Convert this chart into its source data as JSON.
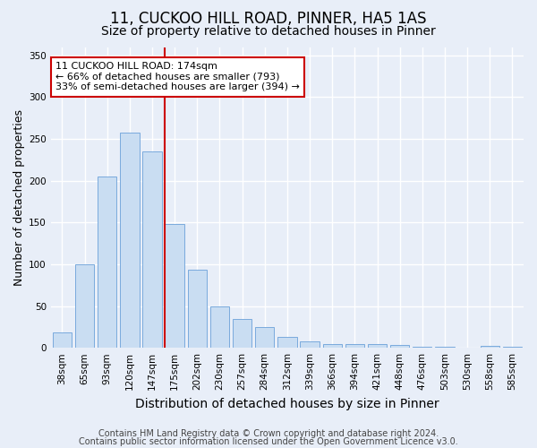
{
  "title1": "11, CUCKOO HILL ROAD, PINNER, HA5 1AS",
  "title2": "Size of property relative to detached houses in Pinner",
  "xlabel": "Distribution of detached houses by size in Pinner",
  "ylabel": "Number of detached properties",
  "categories": [
    "38sqm",
    "65sqm",
    "93sqm",
    "120sqm",
    "147sqm",
    "175sqm",
    "202sqm",
    "230sqm",
    "257sqm",
    "284sqm",
    "312sqm",
    "339sqm",
    "366sqm",
    "394sqm",
    "421sqm",
    "448sqm",
    "476sqm",
    "503sqm",
    "530sqm",
    "558sqm",
    "585sqm"
  ],
  "values": [
    18,
    100,
    205,
    258,
    235,
    148,
    93,
    50,
    35,
    25,
    13,
    8,
    5,
    5,
    5,
    3,
    1,
    1,
    0,
    2,
    1
  ],
  "bar_color": "#c9ddf2",
  "bar_edge_color": "#7aaadd",
  "vline_color": "#cc0000",
  "annotation_text": "11 CUCKOO HILL ROAD: 174sqm\n← 66% of detached houses are smaller (793)\n33% of semi-detached houses are larger (394) →",
  "annotation_box_color": "#ffffff",
  "annotation_box_edge": "#cc0000",
  "ylim": [
    0,
    360
  ],
  "yticks": [
    0,
    50,
    100,
    150,
    200,
    250,
    300,
    350
  ],
  "footer1": "Contains HM Land Registry data © Crown copyright and database right 2024.",
  "footer2": "Contains public sector information licensed under the Open Government Licence v3.0.",
  "bg_color": "#e8eef8",
  "plot_bg_color": "#e8eef8",
  "grid_color": "#ffffff",
  "title1_fontsize": 12,
  "title2_fontsize": 10,
  "axis_label_fontsize": 9,
  "tick_fontsize": 7.5,
  "footer_fontsize": 7
}
